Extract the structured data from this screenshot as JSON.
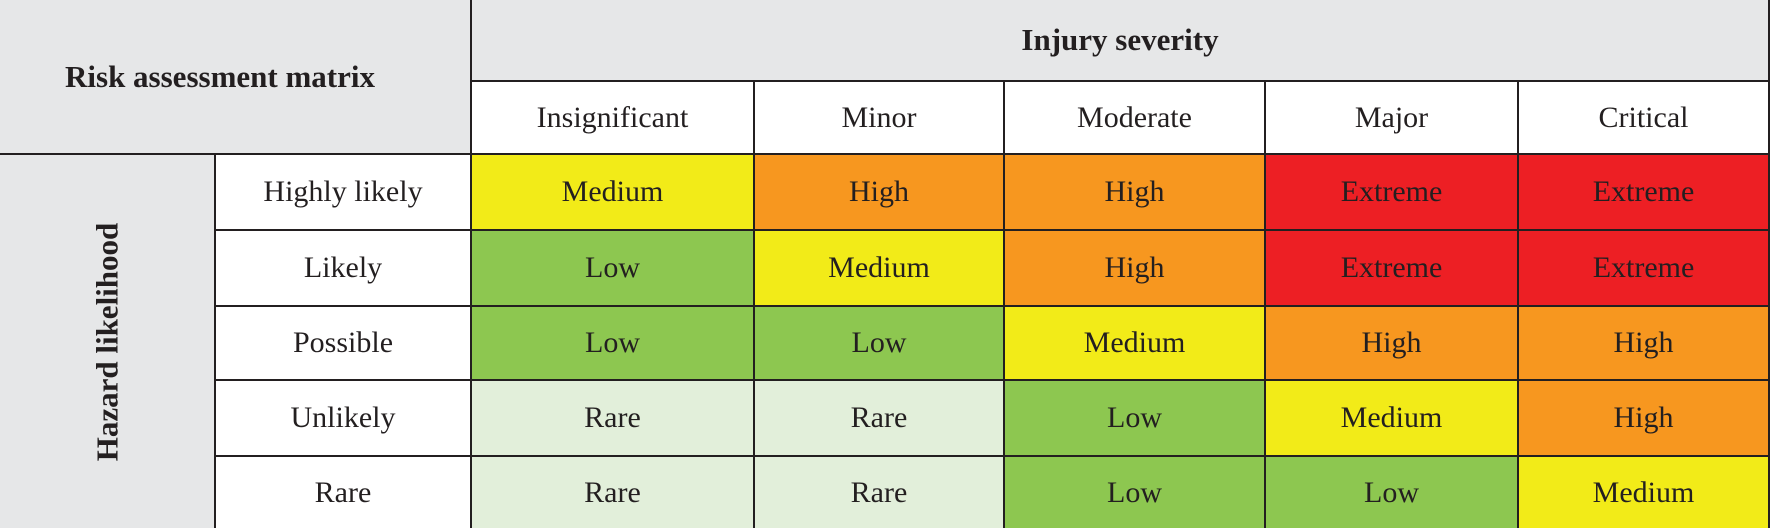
{
  "corner_title": "Risk assessment matrix",
  "severity_title": "Injury severity",
  "likelihood_title": "Hazard likelihood",
  "severity_levels": [
    "Insignificant",
    "Minor",
    "Moderate",
    "Major",
    "Critical"
  ],
  "likelihood_levels": [
    "Highly likely",
    "Likely",
    "Possible",
    "Unlikely",
    "Rare"
  ],
  "rows": [
    [
      "Medium",
      "High",
      "High",
      "Extreme",
      "Extreme"
    ],
    [
      "Low",
      "Medium",
      "High",
      "Extreme",
      "Extreme"
    ],
    [
      "Low",
      "Low",
      "Medium",
      "High",
      "High"
    ],
    [
      "Rare",
      "Rare",
      "Low",
      "Medium",
      "High"
    ],
    [
      "Rare",
      "Rare",
      "Low",
      "Low",
      "Medium"
    ]
  ],
  "colors": {
    "Rare": "#e2efda",
    "Low": "#8dc750",
    "Medium": "#f2eb18",
    "High": "#f7971f",
    "Extreme": "#ed1f24",
    "header": "#e6e7e8",
    "grid": "#231f20"
  }
}
